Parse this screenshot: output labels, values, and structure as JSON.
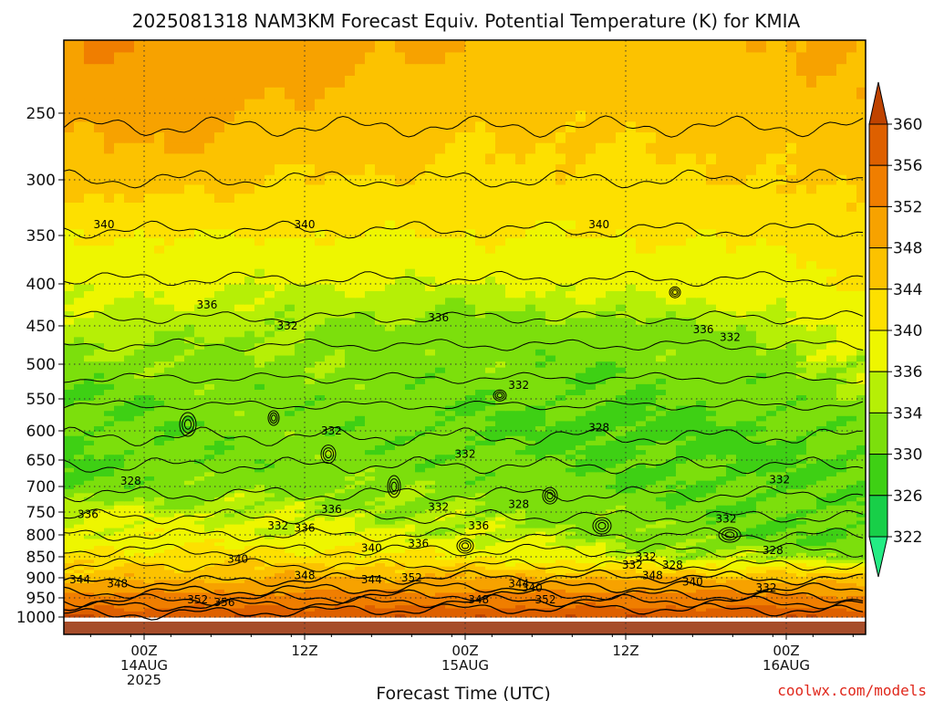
{
  "chart_data": {
    "type": "heatmap",
    "title": "2025081318 NAM3KM Forecast Equiv. Potential Temperature (K) for KMIA",
    "xlabel": "Forecast Time (UTC)",
    "ylabel": "",
    "credit": "coolwx.com/models",
    "y_scale": "pressure (hPa), reversed, non-linear",
    "ylim": [
      1000,
      200
    ],
    "y_ticks": [
      250,
      300,
      350,
      400,
      450,
      500,
      550,
      600,
      650,
      700,
      750,
      800,
      850,
      900,
      950,
      1000
    ],
    "x_ticks": [
      {
        "line1": "00Z",
        "line2": "14AUG",
        "line3": "2025"
      },
      {
        "line1": "12Z",
        "line2": "",
        "line3": ""
      },
      {
        "line1": "00Z",
        "line2": "15AUG",
        "line3": ""
      },
      {
        "line1": "12Z",
        "line2": "",
        "line3": ""
      },
      {
        "line1": "00Z",
        "line2": "16AUG",
        "line3": ""
      }
    ],
    "x_hours": [
      -6,
      0,
      12,
      24,
      36,
      48,
      54
    ],
    "grid": true,
    "colorbar": {
      "levels": [
        322,
        326,
        330,
        334,
        336,
        340,
        344,
        348,
        352,
        356,
        360
      ],
      "colors": [
        "#24ec84",
        "#18cf48",
        "#3ed014",
        "#7cdf0c",
        "#b6ef06",
        "#eef600",
        "#fde000",
        "#fcc200",
        "#f7a200",
        "#f07e00",
        "#de6000",
        "#bf4300"
      ]
    },
    "layers": [
      {
        "p": 1000,
        "theta": [
          360,
          360,
          360,
          360,
          360,
          360,
          360
        ]
      },
      {
        "p": 975,
        "theta": [
          356,
          356,
          356,
          356,
          356,
          356,
          356
        ]
      },
      {
        "p": 950,
        "theta": [
          354,
          354,
          354,
          354,
          354,
          354,
          352
        ]
      },
      {
        "p": 900,
        "theta": [
          346,
          347,
          348,
          348,
          348,
          347,
          346
        ]
      },
      {
        "p": 850,
        "theta": [
          341,
          342,
          342,
          340,
          336,
          334,
          334
        ]
      },
      {
        "p": 800,
        "theta": [
          337,
          338,
          337,
          336,
          333,
          330,
          330
        ]
      },
      {
        "p": 750,
        "theta": [
          336,
          336,
          335,
          334,
          332,
          330,
          330
        ]
      },
      {
        "p": 700,
        "theta": [
          330,
          332,
          333,
          333,
          330,
          330,
          331
        ]
      },
      {
        "p": 650,
        "theta": [
          329,
          331,
          332,
          331,
          330,
          329,
          330
        ]
      },
      {
        "p": 600,
        "theta": [
          330,
          331,
          332,
          330,
          328,
          330,
          331
        ]
      },
      {
        "p": 550,
        "theta": [
          330,
          331,
          332,
          331,
          330,
          332,
          334
        ]
      },
      {
        "p": 500,
        "theta": [
          332,
          333,
          333,
          332,
          331,
          333,
          335
        ]
      },
      {
        "p": 450,
        "theta": [
          335,
          335,
          334,
          333,
          333,
          335,
          338
        ]
      },
      {
        "p": 400,
        "theta": [
          337,
          337,
          336,
          336,
          337,
          338,
          341
        ]
      },
      {
        "p": 350,
        "theta": [
          340,
          340,
          340,
          340,
          340,
          341,
          343
        ]
      },
      {
        "p": 300,
        "theta": [
          346,
          346,
          344,
          343,
          343,
          344,
          345
        ]
      },
      {
        "p": 250,
        "theta": [
          349,
          350,
          347,
          345,
          345,
          346,
          347
        ]
      },
      {
        "p": 200,
        "theta": [
          352,
          352,
          350,
          348,
          347,
          348,
          349
        ]
      }
    ],
    "contour_labels": [
      {
        "text": "340",
        "h": -3.0,
        "p": 340
      },
      {
        "text": "340",
        "h": 12.0,
        "p": 340
      },
      {
        "text": "340",
        "h": 34.0,
        "p": 340
      },
      {
        "text": "336",
        "h": 4.7,
        "p": 425
      },
      {
        "text": "332",
        "h": 10.7,
        "p": 450
      },
      {
        "text": "336",
        "h": 22.0,
        "p": 440
      },
      {
        "text": "336",
        "h": 41.8,
        "p": 455
      },
      {
        "text": "332",
        "h": 43.8,
        "p": 465
      },
      {
        "text": "332",
        "h": 28.0,
        "p": 530
      },
      {
        "text": "328",
        "h": 34.0,
        "p": 595
      },
      {
        "text": "332",
        "h": 14.0,
        "p": 600
      },
      {
        "text": "332",
        "h": 24.0,
        "p": 640
      },
      {
        "text": "332",
        "h": 47.5,
        "p": 687
      },
      {
        "text": "328",
        "h": -1.0,
        "p": 690
      },
      {
        "text": "336",
        "h": -4.2,
        "p": 755
      },
      {
        "text": "336",
        "h": 14.0,
        "p": 745
      },
      {
        "text": "332",
        "h": 22.0,
        "p": 740
      },
      {
        "text": "328",
        "h": 28.0,
        "p": 735
      },
      {
        "text": "332",
        "h": 10.0,
        "p": 780
      },
      {
        "text": "336",
        "h": 12.0,
        "p": 785
      },
      {
        "text": "336",
        "h": 25.0,
        "p": 780
      },
      {
        "text": "332",
        "h": 43.5,
        "p": 765
      },
      {
        "text": "336",
        "h": 20.5,
        "p": 820
      },
      {
        "text": "340",
        "h": 17.0,
        "p": 830
      },
      {
        "text": "328",
        "h": 47.0,
        "p": 835
      },
      {
        "text": "340",
        "h": 7.0,
        "p": 855
      },
      {
        "text": "332",
        "h": 36.5,
        "p": 870
      },
      {
        "text": "328",
        "h": 39.5,
        "p": 870
      },
      {
        "text": "344",
        "h": -4.8,
        "p": 905
      },
      {
        "text": "348",
        "h": 12.0,
        "p": 895
      },
      {
        "text": "344",
        "h": 17.0,
        "p": 905
      },
      {
        "text": "352",
        "h": 20.0,
        "p": 900
      },
      {
        "text": "344",
        "h": 28.0,
        "p": 915
      },
      {
        "text": "340",
        "h": 29.0,
        "p": 925
      },
      {
        "text": "348",
        "h": 38.0,
        "p": 895
      },
      {
        "text": "340",
        "h": 41.0,
        "p": 910
      },
      {
        "text": "348",
        "h": -2.0,
        "p": 915
      },
      {
        "text": "352",
        "h": 4.0,
        "p": 955
      },
      {
        "text": "356",
        "h": 6.0,
        "p": 962
      },
      {
        "text": "348",
        "h": 25.0,
        "p": 955
      },
      {
        "text": "352",
        "h": 30.0,
        "p": 955
      },
      {
        "text": "332",
        "h": 37.5,
        "p": 850
      },
      {
        "text": "332",
        "h": 46.5,
        "p": 925
      }
    ]
  }
}
